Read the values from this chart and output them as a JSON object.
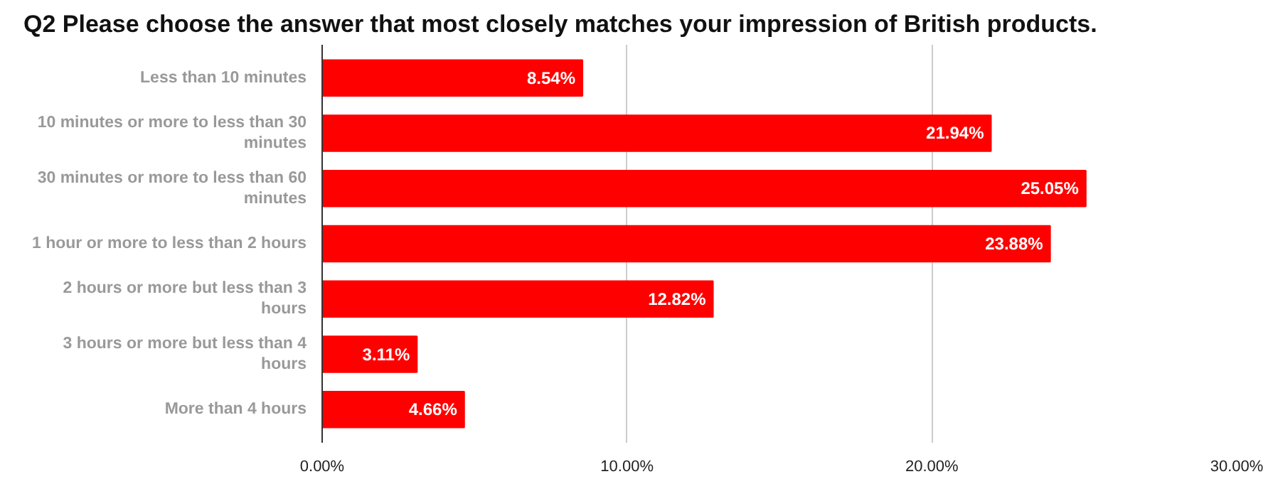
{
  "chart_data": {
    "type": "bar",
    "orientation": "horizontal",
    "title": "Q2 Please choose the answer that most closely matches your impression of British products.",
    "categories": [
      "Less than 10 minutes",
      "10 minutes or more to less than 30 minutes",
      "30 minutes or more to less than 60 minutes",
      "1 hour or more to less than 2 hours",
      "2 hours or more but less than 3 hours",
      "3 hours or more but less than 4 hours",
      "More than 4 hours"
    ],
    "values": [
      8.54,
      21.94,
      25.05,
      23.88,
      12.82,
      3.11,
      4.66
    ],
    "value_labels": [
      "8.54%",
      "21.94%",
      "25.05%",
      "23.88%",
      "12.82%",
      "3.11%",
      "4.66%"
    ],
    "color": "#ff0000",
    "xlim": [
      0,
      30
    ],
    "xticks": [
      {
        "value": 0,
        "label": "0.00%"
      },
      {
        "value": 10,
        "label": "10.00%"
      },
      {
        "value": 20,
        "label": "20.00%"
      },
      {
        "value": 30,
        "label": "30.00%"
      }
    ],
    "grid": "x"
  }
}
